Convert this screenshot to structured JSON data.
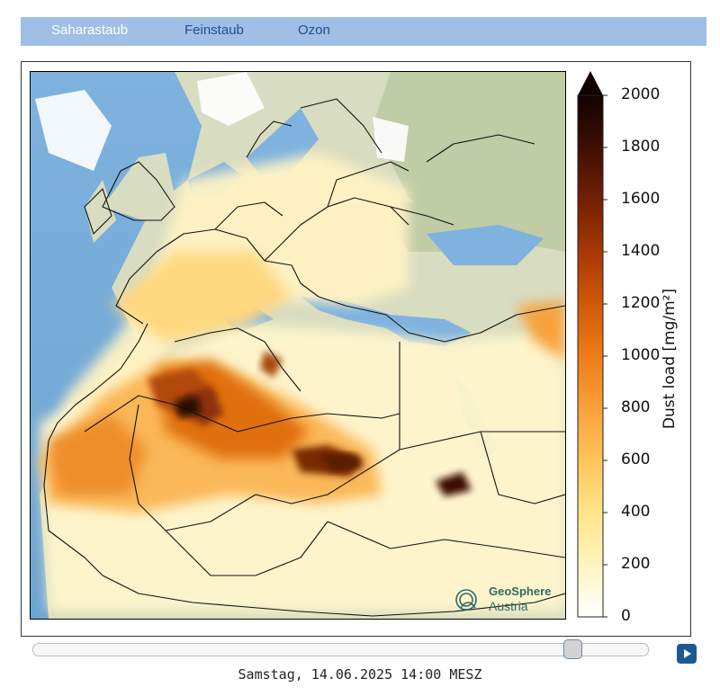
{
  "tabs": [
    {
      "label": "Saharastaub",
      "active": true
    },
    {
      "label": "Feinstaub",
      "active": false
    },
    {
      "label": "Ozon",
      "active": false
    }
  ],
  "map": {
    "region": "Europe, North Africa and Middle East",
    "colorbar": {
      "title": "Dust load [mg/m²]",
      "ticks": [
        "2000",
        "1800",
        "1600",
        "1400",
        "1200",
        "1000",
        "800",
        "600",
        "400",
        "200",
        "0"
      ],
      "min": 0,
      "max": 2000,
      "colors": [
        "#ffffff",
        "#fff4c0",
        "#ffe48a",
        "#fdc45a",
        "#f9a13a",
        "#ee7c18",
        "#d25808",
        "#a63806",
        "#722004",
        "#3f0f02",
        "#120300"
      ]
    },
    "attribution": {
      "line1": "GeoSphere",
      "line2": "Austria"
    }
  },
  "timeline": {
    "position": 0.87,
    "timestamp": "Samstag, 14.06.2025 14:00 MESZ"
  },
  "colors": {
    "tab_bar": "#9fbfe6",
    "accent": "#1b5a92"
  }
}
